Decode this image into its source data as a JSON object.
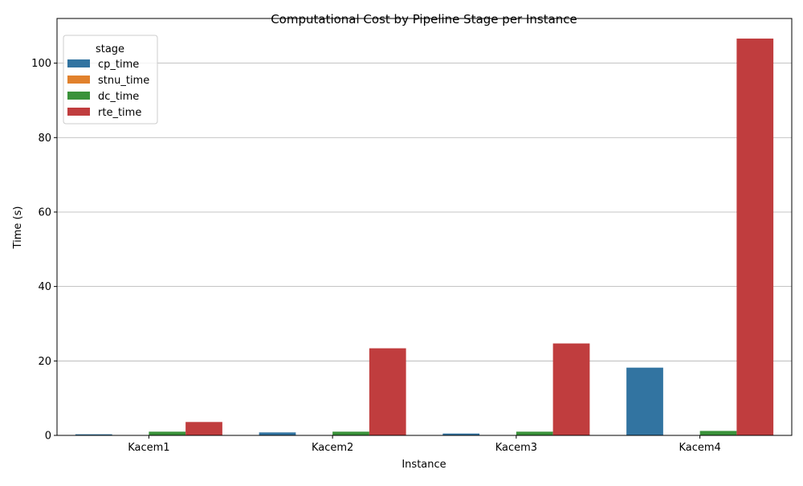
{
  "chart_data": {
    "type": "bar",
    "title": "Computational Cost by Pipeline Stage per Instance",
    "xlabel": "Instance",
    "ylabel": "Time (s)",
    "ylim": [
      0,
      112
    ],
    "yticks": [
      0,
      20,
      40,
      60,
      80,
      100
    ],
    "grid": "horizontal",
    "legend_position": "top-left",
    "legend_title": "stage",
    "categories": [
      "Kacem1",
      "Kacem2",
      "Kacem3",
      "Kacem4"
    ],
    "series": [
      {
        "name": "cp_time",
        "color": "#3274a1",
        "values": [
          0.3,
          0.8,
          0.5,
          18.2
        ]
      },
      {
        "name": "stnu_time",
        "color": "#e1812c",
        "values": [
          0.0,
          0.0,
          0.0,
          0.0
        ]
      },
      {
        "name": "dc_time",
        "color": "#3a923a",
        "values": [
          1.0,
          1.0,
          1.0,
          1.2
        ]
      },
      {
        "name": "rte_time",
        "color": "#c03d3e",
        "values": [
          3.6,
          23.4,
          24.7,
          106.6
        ]
      }
    ]
  }
}
